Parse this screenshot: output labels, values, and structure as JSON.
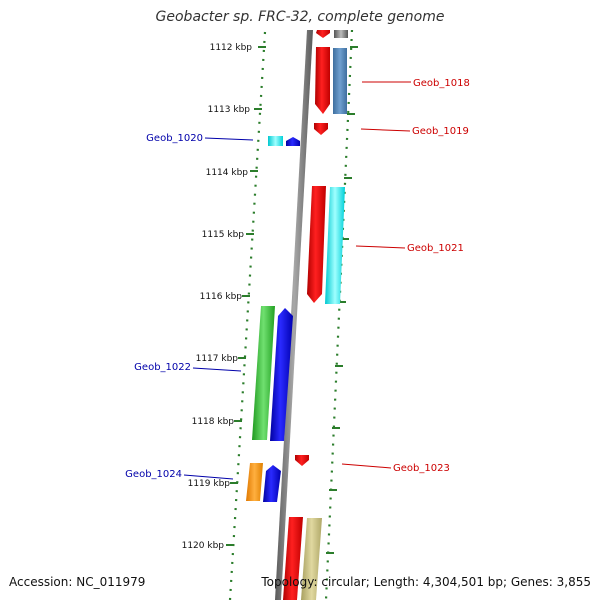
{
  "header": {
    "title": "Geobacter sp. FRC-32, complete genome"
  },
  "footer": {
    "accession": "Accession: NC_011979",
    "summary": "Topology: circular; Length: 4,304,501 bp; Genes: 3,855"
  },
  "colors": {
    "forward_label": "#cc0000",
    "reverse_label": "#0000aa",
    "tick": "#2b7d2b",
    "backbone": "#888888"
  },
  "scale_labels": [
    "1112 kbp",
    "1113 kbp",
    "1114 kbp",
    "1115 kbp",
    "1116 kbp",
    "1117 kbp",
    "1118 kbp",
    "1119 kbp",
    "1120 kbp"
  ],
  "gene_labels": [
    {
      "name": "Geob_1018",
      "strand": "forward"
    },
    {
      "name": "Geob_1019",
      "strand": "forward"
    },
    {
      "name": "Geob_1020",
      "strand": "reverse"
    },
    {
      "name": "Geob_1021",
      "strand": "forward"
    },
    {
      "name": "Geob_1022",
      "strand": "reverse"
    },
    {
      "name": "Geob_1023",
      "strand": "forward"
    },
    {
      "name": "Geob_1024",
      "strand": "reverse"
    }
  ]
}
